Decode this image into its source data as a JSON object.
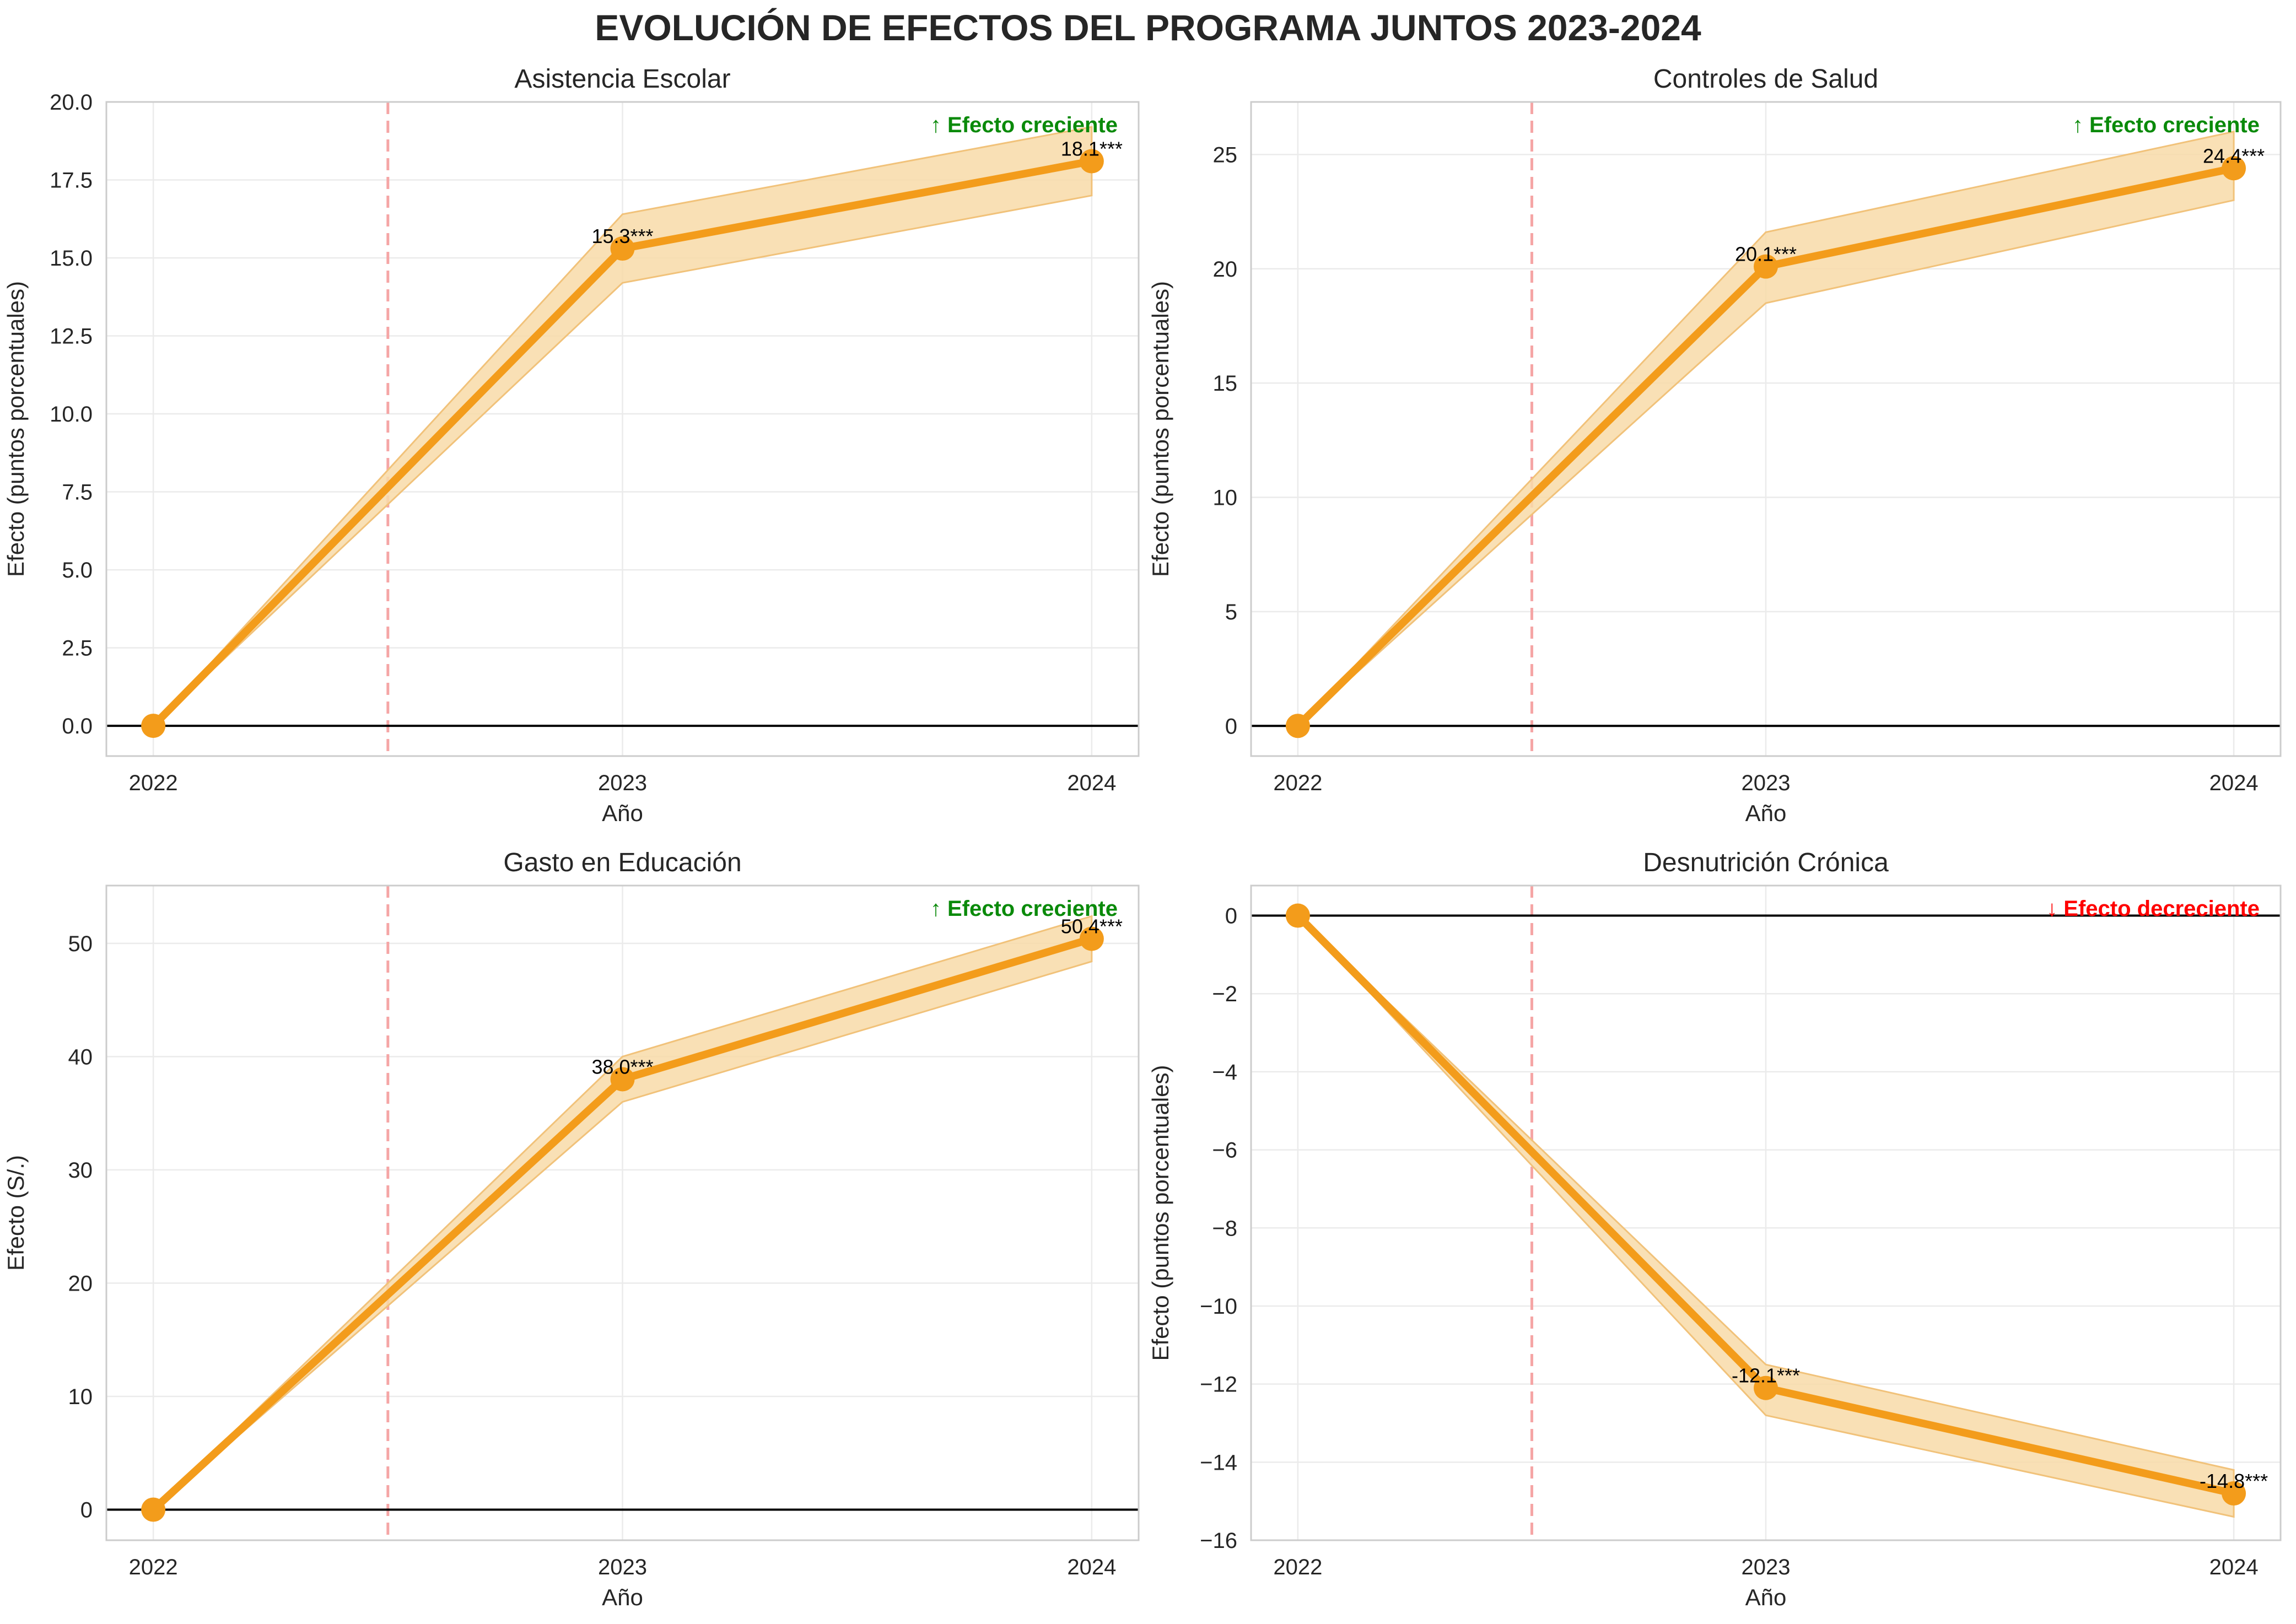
{
  "suptitle": "EVOLUCIÓN DE EFECTOS DEL PROGRAMA JUNTOS 2023-2024",
  "colors": {
    "line": "#F39C1B",
    "band": "#F8DBA8",
    "band_edge": "#F1C27A",
    "treatment_line": "#F5A5A5",
    "zero_line": "#000000",
    "grid": "#EBEBEB",
    "axes_edge": "#CCCCCC",
    "up": "#0A8A0A",
    "down": "#FF0000"
  },
  "chart_data": [
    {
      "type": "line",
      "title": "Asistencia Escolar",
      "xlabel": "Año",
      "ylabel": "Efecto (puntos porcentuales)",
      "x": [
        2022,
        2023,
        2024
      ],
      "y": [
        0,
        15.3,
        18.1
      ],
      "ci_lower": [
        0,
        14.2,
        17.0
      ],
      "ci_upper": [
        0,
        16.4,
        19.2
      ],
      "point_labels": [
        "",
        "15.3***",
        "18.1***"
      ],
      "treatment_x": 2022.5,
      "xlim": [
        2021.9,
        2024.1
      ],
      "ylim": [
        -0.97,
        20.0
      ],
      "yticks": [
        0,
        2.5,
        5,
        7.5,
        10,
        12.5,
        15,
        17.5,
        20
      ],
      "ytick_labels": [
        "0.0",
        "2.5",
        "5.0",
        "7.5",
        "10.0",
        "12.5",
        "15.0",
        "17.5",
        "20.0"
      ],
      "xtick_labels": [
        "2022",
        "2023",
        "2024"
      ],
      "annotation": "↑ Efecto creciente",
      "trend": "up",
      "grid": true
    },
    {
      "type": "line",
      "title": "Controles de Salud",
      "xlabel": "Año",
      "ylabel": "Efecto (puntos porcentuales)",
      "x": [
        2022,
        2023,
        2024
      ],
      "y": [
        0,
        20.1,
        24.4
      ],
      "ci_lower": [
        0,
        18.5,
        23.0
      ],
      "ci_upper": [
        0,
        21.6,
        26.0
      ],
      "point_labels": [
        "",
        "20.1***",
        "24.4***"
      ],
      "treatment_x": 2022.5,
      "xlim": [
        2021.9,
        2024.1
      ],
      "ylim": [
        -1.32,
        27.3
      ],
      "yticks": [
        0,
        5,
        10,
        15,
        20,
        25
      ],
      "ytick_labels": [
        "0",
        "5",
        "10",
        "15",
        "20",
        "25"
      ],
      "xtick_labels": [
        "2022",
        "2023",
        "2024"
      ],
      "annotation": "↑ Efecto creciente",
      "trend": "up",
      "grid": true
    },
    {
      "type": "line",
      "title": "Gasto en Educación",
      "xlabel": "Año",
      "ylabel": "Efecto (S/.)",
      "x": [
        2022,
        2023,
        2024
      ],
      "y": [
        0,
        38.0,
        50.4
      ],
      "ci_lower": [
        0,
        36.0,
        48.4
      ],
      "ci_upper": [
        0,
        40.0,
        52.4
      ],
      "point_labels": [
        "",
        "38.0***",
        "50.4***"
      ],
      "treatment_x": 2022.5,
      "xlim": [
        2021.9,
        2024.1
      ],
      "ylim": [
        -2.7,
        55.1
      ],
      "yticks": [
        0,
        10,
        20,
        30,
        40,
        50
      ],
      "ytick_labels": [
        "0",
        "10",
        "20",
        "30",
        "40",
        "50"
      ],
      "xtick_labels": [
        "2022",
        "2023",
        "2024"
      ],
      "annotation": "↑ Efecto creciente",
      "trend": "up",
      "grid": true
    },
    {
      "type": "line",
      "title": "Desnutrición Crónica",
      "xlabel": "Año",
      "ylabel": "Efecto (puntos porcentuales)",
      "x": [
        2022,
        2023,
        2024
      ],
      "y": [
        0,
        -12.1,
        -14.8
      ],
      "ci_lower": [
        0,
        -12.8,
        -15.4
      ],
      "ci_upper": [
        0,
        -11.5,
        -14.2
      ],
      "point_labels": [
        "",
        "-12.1***",
        "-14.8***"
      ],
      "treatment_x": 2022.5,
      "xlim": [
        2021.9,
        2024.1
      ],
      "ylim": [
        -16.0,
        0.77
      ],
      "yticks": [
        0,
        -2,
        -4,
        -6,
        -8,
        -10,
        -12,
        -14,
        -16
      ],
      "ytick_labels": [
        "0",
        "−2",
        "−4",
        "−6",
        "−8",
        "−10",
        "−12",
        "−14",
        "−16"
      ],
      "xtick_labels": [
        "2022",
        "2023",
        "2024"
      ],
      "annotation": "↓ Efecto decreciente",
      "trend": "down",
      "grid": true
    }
  ]
}
